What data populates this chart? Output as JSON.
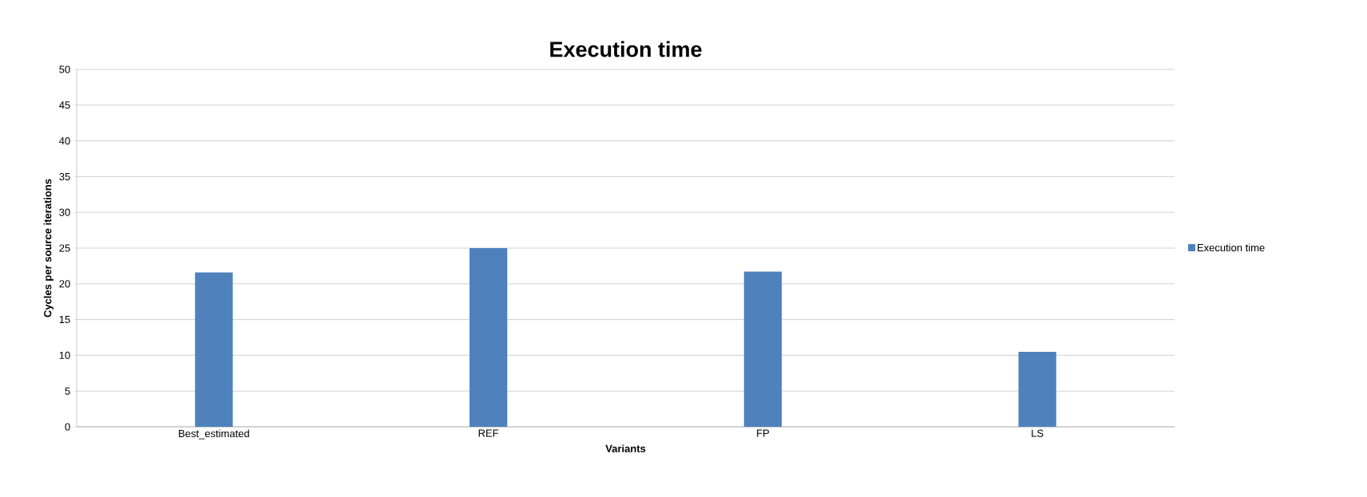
{
  "chart_data": {
    "type": "bar",
    "title": "Execution time",
    "xlabel": "Variants",
    "ylabel": "Cycles per source iterations",
    "categories": [
      "Best_estimated",
      "REF",
      "FP",
      "LS"
    ],
    "series": [
      {
        "name": "Execution time",
        "color": "#4f81bd",
        "values": [
          21.6,
          25,
          21.7,
          10.5
        ]
      }
    ],
    "ylim": [
      0,
      50
    ],
    "yticks": [
      0,
      5,
      10,
      15,
      20,
      25,
      30,
      35,
      40,
      45,
      50
    ],
    "grid": "y",
    "legend": "right"
  }
}
